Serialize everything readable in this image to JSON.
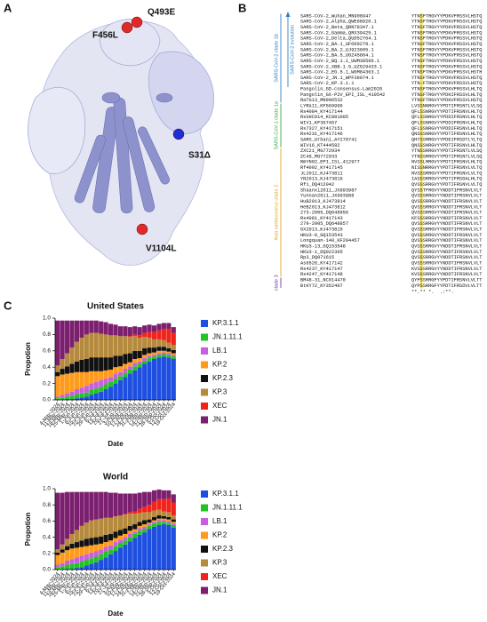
{
  "panel_labels": {
    "a": "A",
    "b": "B",
    "c": "C"
  },
  "structure": {
    "mutations": [
      {
        "label": "F456L",
        "color": "#e02a2a"
      },
      {
        "label": "Q493E",
        "color": "#e02a2a"
      },
      {
        "label": "S31Δ",
        "color": "#1a2fd6"
      },
      {
        "label": "V1104L",
        "color": "#e02a2a"
      }
    ]
  },
  "alignment": {
    "evolution_label": "SARS-CoV-2 evolution",
    "consensus": "**.** *.  .:**.",
    "groups": [
      {
        "label": "SARS-CoV-2 clade 1b",
        "color": "#2f7fc1",
        "rows": [
          {
            "name": "SARS-CoV-2_Wuhan_MN908947",
            "sequence": "YTNSFTRGVYYPDKVFRSSVLHSTQ"
          },
          {
            "name": "SARS-CoV-2_Alpha_QWE88920.1",
            "sequence": "YTNSFTRGVYYPDKVFRSSVLHSTQ"
          },
          {
            "name": "SARS-CoV-2_Beta_QRN78347.1",
            "sequence": "YTNSFTRGVYYPDKVFRSSVLHSTQ"
          },
          {
            "name": "SARS-CoV-2_Gamma_QRX39425.1",
            "sequence": "YTNSFTRGVYYPDKVFRSSVLHSTQ"
          },
          {
            "name": "SARS-CoV-2_Delta_QUD52764.1",
            "sequence": "YTNSFTRGVYYPDKVFRSSVLHSTQ"
          },
          {
            "name": "SARS-CoV-2_BA.1_UFO69279.1",
            "sequence": "YTNSFTRGVYYPDKVFRSSVLHSTQ"
          },
          {
            "name": "SARS-CoV-2_BA.2_UJ923605.1",
            "sequence": "YTNSFTRGVYYPDKVFRSSVLHSTQ"
          },
          {
            "name": "SARS-CoV-2_BA.5_UOZ45804.1",
            "sequence": "YTNSFTRGVYYPDKVFRSSVLHSTQ"
          },
          {
            "name": "SARS-CoV-2_BQ.1.1_UWM38596.1",
            "sequence": "YTNSFTRGVYYPDKVFRSSVLHSTQ"
          },
          {
            "name": "SARS-CoV-2_XBB.1.5_UZG29433.1",
            "sequence": "YTNSFTRGVYYPDKVFRSSVLHSTQ"
          },
          {
            "name": "SARS-CoV-2_EG.5.1_WGM84363.1",
            "sequence": "YTNSFTRGVYYPDKVFRSSVLHSTH"
          },
          {
            "name": "SARS-CoV-2_JN.1_WPF38074.1",
            "sequence": "YTNSFTRGVYYPDKVFRSSVLHSTQ"
          },
          {
            "name": "SARS-CoV-2_KP.3.1.1",
            "sequence": "YTN-FTRGVYYPDKVFRSSVLHSTQ"
          },
          {
            "name": "Pangolin_GD-consensus-Lam2020",
            "sequence": "YTNSFTRGVYYPDKVFRSSVLHLTQ"
          },
          {
            "name": "Pangolin_GX-P2V_EPI_ISL_410542",
            "sequence": "YTNSFTRGVYYPDKIFRSSVLHLTQ"
          },
          {
            "name": "RaTG13_MN996532",
            "sequence": "YTNSFTRGVYYPDKVFRSSVLHSTQ"
          }
        ]
      },
      {
        "label": "SARS-CoV-1 clade 1a",
        "color": "#3fa64a",
        "rows": [
          {
            "name": "LYRa11_KF569996",
            "sequence": "LVSSNNRGVYYPDTIFRSNTLVLSQ"
          },
          {
            "name": "Rs4084_KY417144",
            "sequence": "QFLSSNRGVYYPDTIFRSNVLHLTQ"
          },
          {
            "name": "RsSHC014_KC881005",
            "sequence": "QFLSSNRGVYYPDDIFRSNVLHLTQ"
          },
          {
            "name": "WIV1_KF367457",
            "sequence": "QFLSSNRGVYYPDDIFRSNVLHLTQ"
          },
          {
            "name": "Rs7327_KY417151",
            "sequence": "QFLSSNRGVYYPDDIFRSNVLHLTQ"
          },
          {
            "name": "Rs4231_KY417146",
            "sequence": "QNSSSNRGVYYPDTIFRSNVLHLTQ"
          },
          {
            "name": "SARS_Urbani_AY278741",
            "sequence": "QHTSSMRGVYYPDEIFRSDTLYLTQ"
          },
          {
            "name": "WIV16_KT444582",
            "sequence": "QNSSSNRGVYYPDTIFRSNVLHLTQ"
          }
        ]
      },
      {
        "label": "Asia sarbecovirus clade 2",
        "color": "#e3a62a",
        "rows": [
          {
            "name": "ZXC21_MG772934",
            "sequence": "YTNSSRRGVYYPDTIFRSNTLVLSQ"
          },
          {
            "name": "ZC45_MG772933",
            "sequence": "YTNSSRRGVYYPDTIFRSNTLVLSQ"
          },
          {
            "name": "RmYN02_EPI_ISL_412977",
            "sequence": "NVSSLMRGVYYPDTIFRSNVLHLTQ"
          },
          {
            "name": "Rf4092_KY417145",
            "sequence": "NISSNRRGVYYPDTIFRSNVLVLTQ"
          },
          {
            "name": "JL2012_KJ473811",
            "sequence": "NVSSSRRGVYYPDTIFRSNVLVLTQ"
          },
          {
            "name": "YN2013_KJ473816",
            "sequence": "IASSSRRGVYYPDTIFRSDALHLTQ"
          },
          {
            "name": "Rf1_DQ412042",
            "sequence": "QVSSSRRGVYYPDTIFRSNVLVLTQ"
          },
          {
            "name": "Shaanxi2011_JX993987",
            "sequence": "QYSSTFRGVYYNDDTIFRSNVLVLT"
          },
          {
            "name": "Yunnan2011_JX993988",
            "sequence": "QVSSSRRGVYYNDDTIFRSNVLVLT"
          },
          {
            "name": "HuB2013_KJ473814",
            "sequence": "QVSSSRRGVYYNDDTIFRSNVLVLT"
          },
          {
            "name": "HeB2013_KJ473812",
            "sequence": "QVSSSRRGVYYNDDTIFRSNVLVLT"
          },
          {
            "name": "273-2005_DQ648856",
            "sequence": "QVSSSRRGVYYNDDTIFRSNVLVLT"
          },
          {
            "name": "Rs4081_KY417143",
            "sequence": "KFSSSRRGVYYNDDTIFRSNVLVLT"
          },
          {
            "name": "279-2005_DQ648857",
            "sequence": "QVSSSRRGVYYNDDTIFRSNVLVLT"
          },
          {
            "name": "GX2013_KJ473815",
            "sequence": "QVSSSRRGVYYNDDTIFRSNVLVLT"
          },
          {
            "name": "HKU3-8_GQ153543",
            "sequence": "QVSSSRRGVYYNDDTIFRSNVLVLT"
          },
          {
            "name": "Longquan-140_KF294457",
            "sequence": "QVSSSRRGVYYNDDTIFRSNVLVLT"
          },
          {
            "name": "HKU3-13_GQ153548",
            "sequence": "QVSSSRRGVYYNDDTIFRSNVLVLT"
          },
          {
            "name": "HKU3-1_DQ022305",
            "sequence": "QVSSSRRGVYYNDDTIFRSNVLVLT"
          },
          {
            "name": "Rp3_DQ071615",
            "sequence": "QVSSSRRGVYYNDDTIFRSNVLVLT"
          },
          {
            "name": "As6526_KY417142",
            "sequence": "QVSSSRRGVYYNDDTIFRSNVLVLT"
          },
          {
            "name": "Rs4237_KY417147",
            "sequence": "KVSSSRRGVYYNDDTIFRSNVLVLT"
          },
          {
            "name": "Rs4247_KY417148",
            "sequence": "KVSSSRRGVYYNDDTIFRSNVLVLT"
          }
        ]
      },
      {
        "label": "clade 3",
        "color": "#6a3d9a",
        "rows": [
          {
            "name": "BM48-31_NC014470",
            "sequence": "QYFSSRRGFYYPDTIFRSNVLVLTT"
          },
          {
            "name": "BtKY72_KY352407",
            "sequence": "QYPSSRRGFYYPDTIFRSDVLVLTT"
          }
        ]
      }
    ]
  },
  "chart_data": [
    {
      "type": "stacked_bar",
      "title": "United States",
      "xlabel": "Date",
      "ylabel": "Propotion",
      "categories": [
        "4-May-2024",
        "11-May-2024",
        "18-May-2024",
        "25-May-2024",
        "1-Jun-2024",
        "8-Jun-2024",
        "15-Jun-2024",
        "22-Jun-2024",
        "29-Jun-2024",
        "6-Jul-2024",
        "13-Jul-2024",
        "20-Jul-2024",
        "27-Jul-2024",
        "3-Aug-2024",
        "10-Aug-2024",
        "17-Aug-2024",
        "24-Aug-2024",
        "31-Aug-2024",
        "7-Sep-2024",
        "14-Sep-2024",
        "21-Sep-2024",
        "28-Sep-2024",
        "5-Oct-2024",
        "12-Oct-2024",
        "19-Oct-2024"
      ],
      "ylim": [
        0,
        1
      ],
      "yticks": [
        {
          "value": 0,
          "label": "0.0"
        },
        0.2,
        0.4,
        0.6,
        0.8,
        {
          "value": 1,
          "label": "1.0"
        }
      ],
      "legend": "right",
      "series": [
        {
          "name": "KP.3.1.1",
          "color": "#1f4fe0",
          "values": [
            0,
            0,
            0.01,
            0.01,
            0.02,
            0.03,
            0.04,
            0.06,
            0.08,
            0.1,
            0.13,
            0.16,
            0.2,
            0.24,
            0.28,
            0.32,
            0.36,
            0.4,
            0.44,
            0.47,
            0.5,
            0.52,
            0.53,
            0.52,
            0.5
          ]
        },
        {
          "name": "JN.1.11.1",
          "color": "#22c322",
          "values": [
            0.02,
            0.03,
            0.03,
            0.04,
            0.05,
            0.05,
            0.05,
            0.06,
            0.06,
            0.06,
            0.06,
            0.06,
            0.06,
            0.05,
            0.05,
            0.05,
            0.05,
            0.04,
            0.04,
            0.04,
            0.03,
            0.03,
            0.03,
            0.03,
            0.03
          ]
        },
        {
          "name": "LB.1",
          "color": "#c85fe0",
          "values": [
            0.02,
            0.03,
            0.04,
            0.05,
            0.06,
            0.07,
            0.08,
            0.08,
            0.08,
            0.08,
            0.07,
            0.06,
            0.06,
            0.05,
            0.05,
            0.04,
            0.04,
            0.03,
            0.03,
            0.03,
            0.02,
            0.02,
            0.02,
            0.02,
            0.02
          ]
        },
        {
          "name": "KP.2",
          "color": "#ff9a1a",
          "values": [
            0.25,
            0.25,
            0.24,
            0.23,
            0.21,
            0.19,
            0.17,
            0.15,
            0.13,
            0.11,
            0.1,
            0.09,
            0.08,
            0.07,
            0.06,
            0.05,
            0.05,
            0.04,
            0.04,
            0.03,
            0.03,
            0.03,
            0.02,
            0.02,
            0.02
          ]
        },
        {
          "name": "KP.2.3",
          "color": "#111111",
          "values": [
            0.05,
            0.07,
            0.09,
            0.11,
            0.13,
            0.15,
            0.16,
            0.17,
            0.17,
            0.17,
            0.16,
            0.15,
            0.14,
            0.13,
            0.12,
            0.11,
            0.1,
            0.09,
            0.08,
            0.07,
            0.06,
            0.05,
            0.05,
            0.04,
            0.04
          ]
        },
        {
          "name": "KP.3",
          "color": "#b58a3c",
          "values": [
            0.08,
            0.12,
            0.16,
            0.2,
            0.24,
            0.27,
            0.3,
            0.3,
            0.3,
            0.29,
            0.28,
            0.27,
            0.25,
            0.24,
            0.22,
            0.2,
            0.18,
            0.16,
            0.14,
            0.12,
            0.1,
            0.09,
            0.08,
            0.07,
            0.06
          ]
        },
        {
          "name": "XEC",
          "color": "#f0241c",
          "values": [
            0,
            0,
            0,
            0,
            0,
            0,
            0,
            0,
            0,
            0,
            0,
            0,
            0,
            0,
            0,
            0.01,
            0.02,
            0.03,
            0.05,
            0.07,
            0.09,
            0.11,
            0.14,
            0.17,
            0.15
          ]
        },
        {
          "name": "JN.1",
          "color": "#7b1f6e",
          "values": [
            0.55,
            0.47,
            0.4,
            0.33,
            0.26,
            0.21,
            0.17,
            0.15,
            0.15,
            0.15,
            0.15,
            0.14,
            0.13,
            0.12,
            0.12,
            0.11,
            0.1,
            0.1,
            0.09,
            0.09,
            0.08,
            0.08,
            0.07,
            0.07,
            0.07
          ]
        }
      ]
    },
    {
      "type": "stacked_bar",
      "title": "World",
      "xlabel": "Date",
      "ylabel": "Propotion",
      "categories": [
        "4-May-2024",
        "11-May-2024",
        "18-May-2024",
        "25-May-2024",
        "1-Jun-2024",
        "8-Jun-2024",
        "15-Jun-2024",
        "22-Jun-2024",
        "29-Jun-2024",
        "6-Jul-2024",
        "13-Jul-2024",
        "20-Jul-2024",
        "27-Jul-2024",
        "3-Aug-2024",
        "10-Aug-2024",
        "17-Aug-2024",
        "24-Aug-2024",
        "31-Aug-2024",
        "7-Sep-2024",
        "14-Sep-2024",
        "21-Sep-2024",
        "28-Sep-2024",
        "5-Oct-2024",
        "12-Oct-2024",
        "19-Oct-2024"
      ],
      "ylim": [
        0,
        1
      ],
      "yticks": [
        {
          "value": 0,
          "label": "0.0"
        },
        0.2,
        0.4,
        0.6,
        0.8,
        {
          "value": 1,
          "label": "1.0"
        }
      ],
      "legend": "right",
      "series": [
        {
          "name": "KP.3.1.1",
          "color": "#1f4fe0",
          "values": [
            0,
            0,
            0.01,
            0.01,
            0.02,
            0.03,
            0.05,
            0.07,
            0.09,
            0.12,
            0.15,
            0.19,
            0.23,
            0.27,
            0.31,
            0.35,
            0.39,
            0.43,
            0.46,
            0.5,
            0.53,
            0.55,
            0.56,
            0.55,
            0.52
          ]
        },
        {
          "name": "JN.1.11.1",
          "color": "#22c322",
          "values": [
            0.03,
            0.04,
            0.05,
            0.06,
            0.06,
            0.07,
            0.07,
            0.07,
            0.07,
            0.07,
            0.07,
            0.06,
            0.06,
            0.06,
            0.05,
            0.05,
            0.05,
            0.05,
            0.04,
            0.04,
            0.04,
            0.04,
            0.03,
            0.03,
            0.03
          ]
        },
        {
          "name": "LB.1",
          "color": "#c85fe0",
          "values": [
            0.03,
            0.04,
            0.05,
            0.06,
            0.07,
            0.07,
            0.07,
            0.07,
            0.07,
            0.06,
            0.06,
            0.05,
            0.05,
            0.04,
            0.04,
            0.04,
            0.03,
            0.03,
            0.03,
            0.02,
            0.02,
            0.02,
            0.02,
            0.02,
            0.02
          ]
        },
        {
          "name": "KP.2",
          "color": "#ff9a1a",
          "values": [
            0.12,
            0.13,
            0.13,
            0.13,
            0.12,
            0.11,
            0.1,
            0.09,
            0.08,
            0.07,
            0.06,
            0.06,
            0.05,
            0.05,
            0.04,
            0.04,
            0.03,
            0.03,
            0.03,
            0.02,
            0.02,
            0.02,
            0.02,
            0.02,
            0.02
          ]
        },
        {
          "name": "KP.2.3",
          "color": "#111111",
          "values": [
            0.03,
            0.04,
            0.05,
            0.06,
            0.07,
            0.08,
            0.09,
            0.09,
            0.09,
            0.09,
            0.09,
            0.08,
            0.08,
            0.07,
            0.07,
            0.06,
            0.06,
            0.05,
            0.05,
            0.04,
            0.04,
            0.04,
            0.03,
            0.03,
            0.03
          ]
        },
        {
          "name": "KP.3",
          "color": "#b58a3c",
          "values": [
            0.04,
            0.06,
            0.09,
            0.12,
            0.15,
            0.18,
            0.2,
            0.22,
            0.22,
            0.22,
            0.21,
            0.2,
            0.19,
            0.18,
            0.17,
            0.15,
            0.13,
            0.11,
            0.1,
            0.09,
            0.08,
            0.07,
            0.06,
            0.06,
            0.05
          ]
        },
        {
          "name": "XEC",
          "color": "#f0241c",
          "values": [
            0,
            0,
            0,
            0,
            0,
            0,
            0,
            0,
            0,
            0,
            0,
            0,
            0,
            0,
            0.01,
            0.02,
            0.03,
            0.05,
            0.07,
            0.09,
            0.11,
            0.13,
            0.15,
            0.17,
            0.16
          ]
        },
        {
          "name": "JN.1",
          "color": "#7b1f6e",
          "values": [
            0.7,
            0.64,
            0.58,
            0.52,
            0.47,
            0.42,
            0.38,
            0.35,
            0.34,
            0.33,
            0.32,
            0.31,
            0.29,
            0.27,
            0.25,
            0.23,
            0.22,
            0.2,
            0.18,
            0.16,
            0.14,
            0.12,
            0.11,
            0.1,
            0.1
          ]
        }
      ]
    }
  ]
}
